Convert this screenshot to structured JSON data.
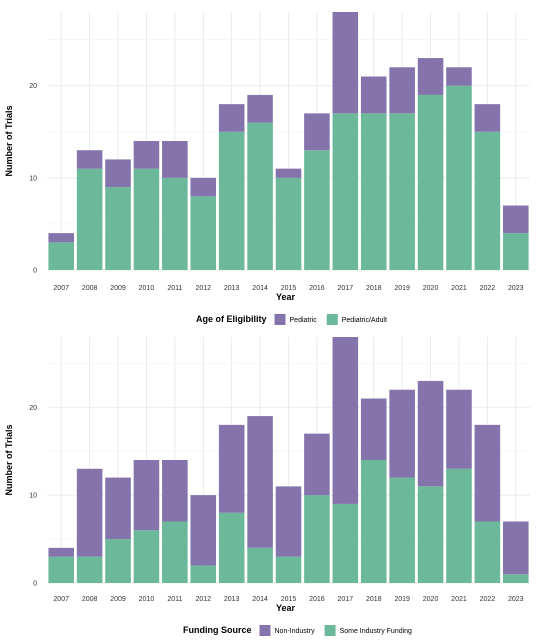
{
  "chart_data": [
    {
      "type": "bar",
      "stacked": true,
      "title": "",
      "xlabel": "Year",
      "ylabel": "Number of Trials",
      "ylim": [
        0,
        28
      ],
      "yticks": [
        0,
        10,
        20
      ],
      "categories": [
        "2007",
        "2008",
        "2009",
        "2010",
        "2011",
        "2012",
        "2013",
        "2014",
        "2015",
        "2016",
        "2017",
        "2018",
        "2019",
        "2020",
        "2021",
        "2022",
        "2023"
      ],
      "legend_title": "Age of Eligibility",
      "legend_position": "bottom",
      "series": [
        {
          "name": "Pediatric/Adult",
          "color": "#6bb99a",
          "values": [
            3,
            11,
            9,
            11,
            10,
            8,
            15,
            16,
            10,
            13,
            17,
            17,
            17,
            19,
            20,
            15,
            4
          ]
        },
        {
          "name": "Pediatric",
          "color": "#8474ab",
          "values": [
            1,
            2,
            3,
            3,
            4,
            2,
            3,
            3,
            1,
            4,
            11,
            4,
            5,
            4,
            2,
            3,
            3
          ]
        }
      ],
      "legend_order": [
        "Pediatric",
        "Pediatric/Adult"
      ]
    },
    {
      "type": "bar",
      "stacked": true,
      "title": "",
      "xlabel": "Year",
      "ylabel": "Number of Trials",
      "ylim": [
        0,
        28
      ],
      "yticks": [
        0,
        10,
        20
      ],
      "categories": [
        "2007",
        "2008",
        "2009",
        "2010",
        "2011",
        "2012",
        "2013",
        "2014",
        "2015",
        "2016",
        "2017",
        "2018",
        "2019",
        "2020",
        "2021",
        "2022",
        "2023"
      ],
      "legend_title": "Funding Source",
      "legend_position": "bottom",
      "series": [
        {
          "name": "Some Industry Funding",
          "color": "#6bb99a",
          "values": [
            3,
            3,
            5,
            6,
            7,
            2,
            8,
            4,
            3,
            10,
            9,
            14,
            12,
            11,
            13,
            7,
            1
          ]
        },
        {
          "name": "Non-Industry",
          "color": "#8474ab",
          "values": [
            1,
            10,
            7,
            8,
            7,
            8,
            10,
            15,
            8,
            7,
            19,
            7,
            10,
            12,
            9,
            11,
            6
          ]
        }
      ],
      "legend_order": [
        "Non-Industry",
        "Some Industry Funding"
      ]
    }
  ]
}
